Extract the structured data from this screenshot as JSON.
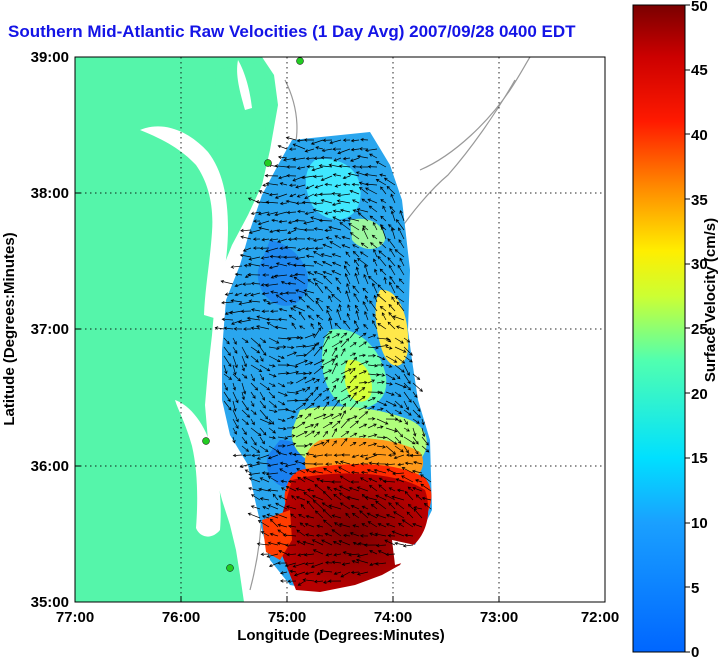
{
  "title": "Southern Mid-Atlantic Raw Velocities (1 Day Avg) 2007/09/28 0400 EDT",
  "map": {
    "xlabel": "Longitude (Degrees:Minutes)",
    "ylabel": "Latitude (Degrees:Minutes)",
    "lon_ticks": [
      "77:00",
      "76:00",
      "75:00",
      "74:00",
      "73:00",
      "72:00"
    ],
    "lat_ticks": [
      "39:00",
      "38:00",
      "37:00",
      "36:00",
      "35:00"
    ],
    "lon_range": [
      -77,
      -72
    ],
    "lat_range": [
      35,
      39
    ],
    "land_color": "#55f5aa",
    "water_color": "#ffffff",
    "station_color": "#22cc22",
    "station_count": 4
  },
  "colorbar": {
    "label": "Surface Velocity (cm/s)",
    "ticks": [
      "0",
      "5",
      "10",
      "15",
      "20",
      "25",
      "30",
      "35",
      "40",
      "45",
      "50"
    ],
    "range": [
      0,
      50
    ],
    "colormap": "jet"
  }
}
